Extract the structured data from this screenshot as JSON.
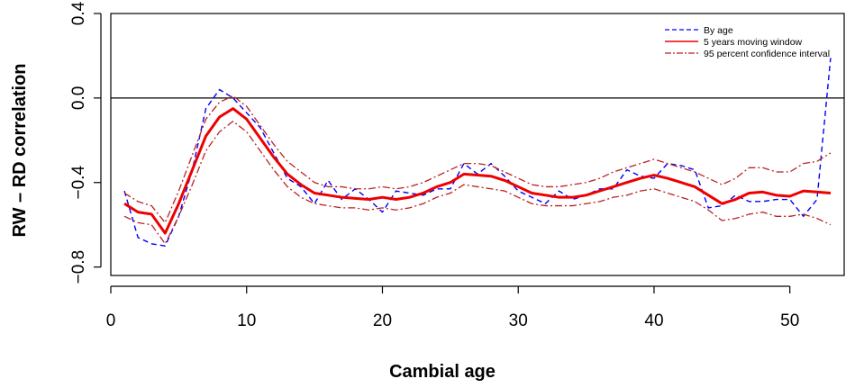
{
  "chart_data": {
    "type": "line",
    "xlabel": "Cambial age",
    "ylabel": "RW – RD correlation",
    "xlim": [
      0,
      54
    ],
    "ylim": [
      -0.84,
      0.4
    ],
    "xticks": [
      0,
      10,
      20,
      30,
      40,
      50
    ],
    "yticks": [
      -0.8,
      -0.4,
      0.0,
      0.4
    ],
    "ytick_labels": [
      "−0.8",
      "−0.4",
      "0.0",
      "0.4"
    ],
    "reference_line_y": 0.0,
    "legend_position": "top-right",
    "series": [
      {
        "name": "By age",
        "style": "dashed",
        "color": "#0000ff",
        "x": [
          1,
          2,
          3,
          4,
          5,
          6,
          7,
          8,
          9,
          10,
          11,
          12,
          13,
          14,
          15,
          16,
          17,
          18,
          19,
          20,
          21,
          22,
          23,
          24,
          25,
          26,
          27,
          28,
          29,
          30,
          31,
          32,
          33,
          34,
          35,
          36,
          37,
          38,
          39,
          40,
          41,
          42,
          43,
          44,
          45,
          46,
          47,
          48,
          49,
          50,
          51,
          52,
          53
        ],
        "values": [
          -0.44,
          -0.66,
          -0.69,
          -0.7,
          -0.56,
          -0.34,
          -0.05,
          0.04,
          0.0,
          -0.07,
          -0.14,
          -0.26,
          -0.38,
          -0.42,
          -0.5,
          -0.39,
          -0.48,
          -0.43,
          -0.48,
          -0.54,
          -0.44,
          -0.45,
          -0.46,
          -0.43,
          -0.43,
          -0.31,
          -0.36,
          -0.31,
          -0.37,
          -0.44,
          -0.47,
          -0.5,
          -0.44,
          -0.48,
          -0.46,
          -0.43,
          -0.43,
          -0.34,
          -0.37,
          -0.38,
          -0.31,
          -0.32,
          -0.34,
          -0.52,
          -0.51,
          -0.46,
          -0.49,
          -0.49,
          -0.48,
          -0.48,
          -0.56,
          -0.48,
          0.19
        ]
      },
      {
        "name": "5 years moving window",
        "style": "solid",
        "color": "#ee0000",
        "x": [
          1,
          2,
          3,
          4,
          5,
          6,
          7,
          8,
          9,
          10,
          11,
          12,
          13,
          14,
          15,
          16,
          17,
          18,
          19,
          20,
          21,
          22,
          23,
          24,
          25,
          26,
          27,
          28,
          29,
          30,
          31,
          32,
          33,
          34,
          35,
          36,
          37,
          38,
          39,
          40,
          41,
          42,
          43,
          44,
          45,
          46,
          47,
          48,
          49,
          50,
          51,
          52,
          53
        ],
        "values": [
          -0.5,
          -0.54,
          -0.55,
          -0.64,
          -0.5,
          -0.34,
          -0.18,
          -0.09,
          -0.05,
          -0.1,
          -0.19,
          -0.28,
          -0.36,
          -0.41,
          -0.45,
          -0.46,
          -0.47,
          -0.475,
          -0.48,
          -0.47,
          -0.48,
          -0.47,
          -0.45,
          -0.42,
          -0.4,
          -0.36,
          -0.365,
          -0.37,
          -0.39,
          -0.42,
          -0.45,
          -0.46,
          -0.47,
          -0.47,
          -0.46,
          -0.44,
          -0.42,
          -0.4,
          -0.38,
          -0.365,
          -0.38,
          -0.4,
          -0.42,
          -0.46,
          -0.5,
          -0.48,
          -0.45,
          -0.445,
          -0.46,
          -0.465,
          -0.44,
          -0.445,
          -0.45
        ]
      },
      {
        "name": "95 percent confidence interval",
        "style": "dotdash",
        "color": "#bb2222",
        "x": [
          1,
          2,
          3,
          4,
          5,
          6,
          7,
          8,
          9,
          10,
          11,
          12,
          13,
          14,
          15,
          16,
          17,
          18,
          19,
          20,
          21,
          22,
          23,
          24,
          25,
          26,
          27,
          28,
          29,
          30,
          31,
          32,
          33,
          34,
          35,
          36,
          37,
          38,
          39,
          40,
          41,
          42,
          43,
          44,
          45,
          46,
          47,
          48,
          49,
          50,
          51,
          52,
          53
        ],
        "upper": [
          -0.45,
          -0.49,
          -0.51,
          -0.59,
          -0.44,
          -0.27,
          -0.1,
          -0.02,
          0.01,
          -0.04,
          -0.13,
          -0.22,
          -0.3,
          -0.35,
          -0.4,
          -0.42,
          -0.42,
          -0.43,
          -0.43,
          -0.42,
          -0.43,
          -0.42,
          -0.4,
          -0.37,
          -0.34,
          -0.31,
          -0.31,
          -0.32,
          -0.35,
          -0.38,
          -0.41,
          -0.42,
          -0.42,
          -0.41,
          -0.4,
          -0.38,
          -0.35,
          -0.33,
          -0.31,
          -0.29,
          -0.31,
          -0.33,
          -0.35,
          -0.38,
          -0.41,
          -0.38,
          -0.33,
          -0.33,
          -0.35,
          -0.35,
          -0.31,
          -0.3,
          -0.26
        ],
        "lower": [
          -0.56,
          -0.59,
          -0.6,
          -0.69,
          -0.56,
          -0.41,
          -0.25,
          -0.16,
          -0.11,
          -0.16,
          -0.25,
          -0.34,
          -0.42,
          -0.47,
          -0.5,
          -0.51,
          -0.52,
          -0.52,
          -0.53,
          -0.52,
          -0.53,
          -0.52,
          -0.5,
          -0.47,
          -0.45,
          -0.41,
          -0.42,
          -0.43,
          -0.44,
          -0.47,
          -0.5,
          -0.51,
          -0.51,
          -0.51,
          -0.5,
          -0.49,
          -0.47,
          -0.46,
          -0.44,
          -0.43,
          -0.45,
          -0.47,
          -0.49,
          -0.53,
          -0.58,
          -0.57,
          -0.55,
          -0.54,
          -0.56,
          -0.56,
          -0.55,
          -0.57,
          -0.6
        ]
      }
    ]
  }
}
